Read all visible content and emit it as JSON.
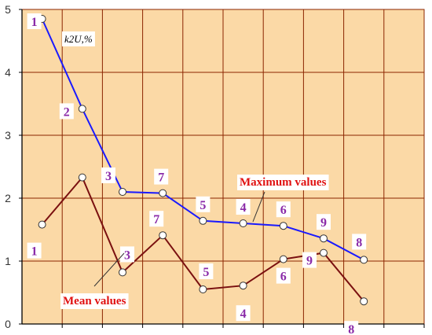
{
  "chart_data": {
    "type": "line",
    "x": [
      1,
      2,
      3,
      4,
      5,
      6,
      7,
      8,
      9
    ],
    "ylim": [
      0,
      5
    ],
    "y_ticks": [
      "0",
      "1",
      "2",
      "3",
      "4",
      "5"
    ],
    "y_axis_title": "k2U,%",
    "grid": true,
    "colors": {
      "plot_bg": "#fbd9a6",
      "grid": "#8b2500",
      "max_line": "#1a1aff",
      "mean_line": "#7a1010",
      "point_label": "#8a2aa8",
      "legend_text": "#e01010"
    },
    "series": [
      {
        "name": "Maximum values",
        "color": "#1a1aff",
        "values": [
          4.85,
          3.42,
          2.1,
          2.08,
          1.64,
          1.6,
          1.56,
          1.36,
          1.02
        ],
        "point_labels": [
          "1",
          "2",
          "3",
          "7",
          "5",
          "4",
          "6",
          "9",
          "8"
        ]
      },
      {
        "name": "Mean values",
        "color": "#7a1010",
        "values": [
          1.58,
          2.33,
          0.82,
          1.41,
          0.55,
          0.61,
          1.03,
          1.13,
          0.36
        ],
        "point_labels": [
          "1",
          "",
          "3",
          "7",
          "5",
          "4",
          "6",
          "9",
          "8"
        ]
      }
    ]
  }
}
